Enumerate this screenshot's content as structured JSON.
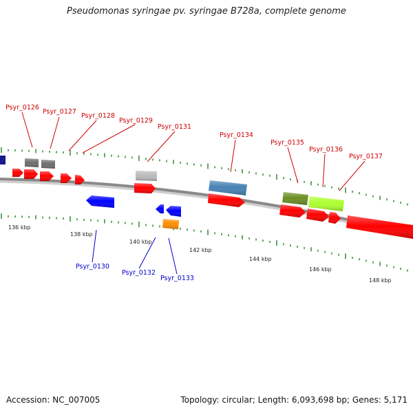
{
  "title": "Pseudomonas syringae pv. syringae B728a, complete genome",
  "accession_text": "Accession: NC_007005",
  "stats_text": "Topology: circular; Length: 6,093,698 bp; Genes: 5,171",
  "colors": {
    "backbone": "#8a8a8a",
    "tick": "#2e8b2e",
    "forward_label": "#cc0000",
    "reverse_label": "#0000cc",
    "scale_label": "#222222"
  },
  "scale": {
    "labels": [
      "136 kbp",
      "138 kbp",
      "140 kbp",
      "142 kbp",
      "144 kbp",
      "146 kbp",
      "148 kbp"
    ]
  },
  "genes": [
    {
      "label": "",
      "color": "#1a1a8c",
      "strand": "+",
      "lane": "dna_cds"
    },
    {
      "label": "Psyr_0126",
      "color": "#6e6e6e",
      "strand": "+",
      "lane": "rna"
    },
    {
      "label": "Psyr_0127",
      "color": "#6e6e6e",
      "strand": "+",
      "lane": "rna"
    },
    {
      "label": "",
      "color": "#ff0000",
      "strand": "+",
      "lane": "cds"
    },
    {
      "label": "",
      "color": "#ff0000",
      "strand": "+",
      "lane": "cds"
    },
    {
      "label": "Psyr_0128",
      "color": "#ff0000",
      "strand": "+",
      "lane": "cds"
    },
    {
      "label": "Psyr_0129",
      "color": "#ff0000",
      "strand": "+",
      "lane": "cds"
    },
    {
      "label": "",
      "color": "#ff0000",
      "strand": "+",
      "lane": "cds"
    },
    {
      "label": "Psyr_0130",
      "color": "#0000ff",
      "strand": "-",
      "lane": "cds"
    },
    {
      "label": "Psyr_0131",
      "color": "#bbbbbb",
      "strand": "+",
      "lane": "rna"
    },
    {
      "label": "",
      "color": "#ff0000",
      "strand": "+",
      "lane": "cds"
    },
    {
      "label": "Psyr_0132",
      "color": "#0000ff",
      "strand": "-",
      "lane": "cds"
    },
    {
      "label": "",
      "color": "#0000ff",
      "strand": "-",
      "lane": "cds"
    },
    {
      "label": "Psyr_0133",
      "color": "#ff8c00",
      "strand": "-",
      "lane": "rna"
    },
    {
      "label": "Psyr_0134",
      "color": "#4682b4",
      "strand": "+",
      "lane": "rna"
    },
    {
      "label": "",
      "color": "#ff0000",
      "strand": "+",
      "lane": "cds"
    },
    {
      "label": "Psyr_0135",
      "color": "#6b8e23",
      "strand": "+",
      "lane": "rna"
    },
    {
      "label": "",
      "color": "#ff0000",
      "strand": "+",
      "lane": "cds"
    },
    {
      "label": "Psyr_0136",
      "color": "#adff2f",
      "strand": "+",
      "lane": "rna"
    },
    {
      "label": "",
      "color": "#ff0000",
      "strand": "+",
      "lane": "cds"
    },
    {
      "label": "Psyr_0137",
      "color": "#ff0000",
      "strand": "+",
      "lane": "cds"
    },
    {
      "label": "",
      "color": "#ff0000",
      "strand": "+",
      "lane": "cds"
    }
  ]
}
